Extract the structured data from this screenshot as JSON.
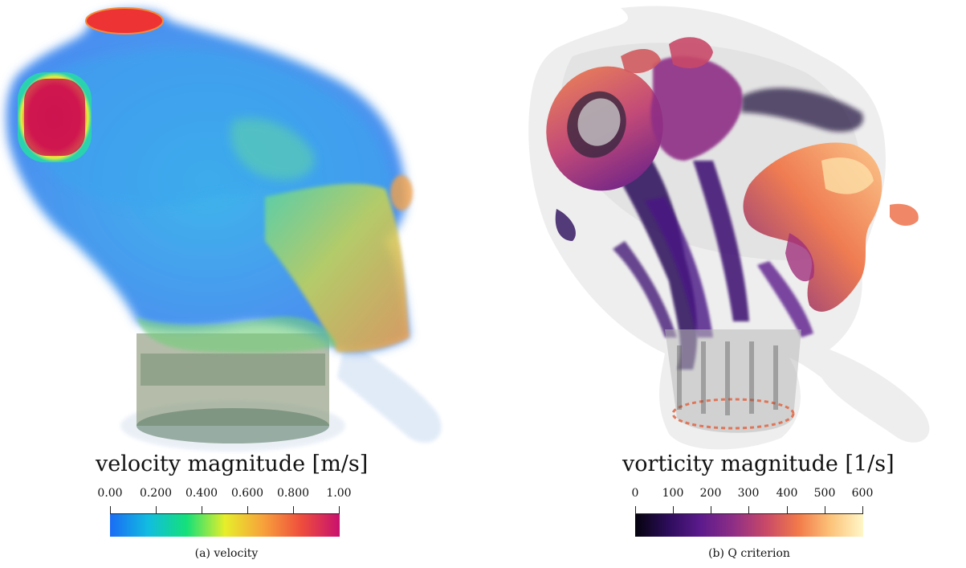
{
  "panels": [
    {
      "colorbar": {
        "title": "velocity magnitude [m/s]",
        "ticks": [
          "0.00",
          "0.200",
          "0.400",
          "0.600",
          "0.800",
          "1.00"
        ],
        "colormap": "spectral (blue-cyan-green-yellow-orange-red-magenta)",
        "stops": [
          "#1a6cf5",
          "#11bde0",
          "#14e07a",
          "#e6ee2a",
          "#f7a23b",
          "#ee4d3d",
          "#c8116e"
        ]
      },
      "caption": "(a) velocity"
    },
    {
      "colorbar": {
        "title": "vorticity magnitude [1/s]",
        "ticks": [
          "0",
          "100",
          "200",
          "300",
          "400",
          "500",
          "600"
        ],
        "colormap": "inferno-like (black-purple-magenta-orange-cream)",
        "stops": [
          "#05030d",
          "#2c0c5a",
          "#5b1a8c",
          "#8e2e86",
          "#c84868",
          "#f27a4a",
          "#fcc37a",
          "#fff7c8"
        ]
      },
      "caption": "(b) Q criterion"
    }
  ]
}
